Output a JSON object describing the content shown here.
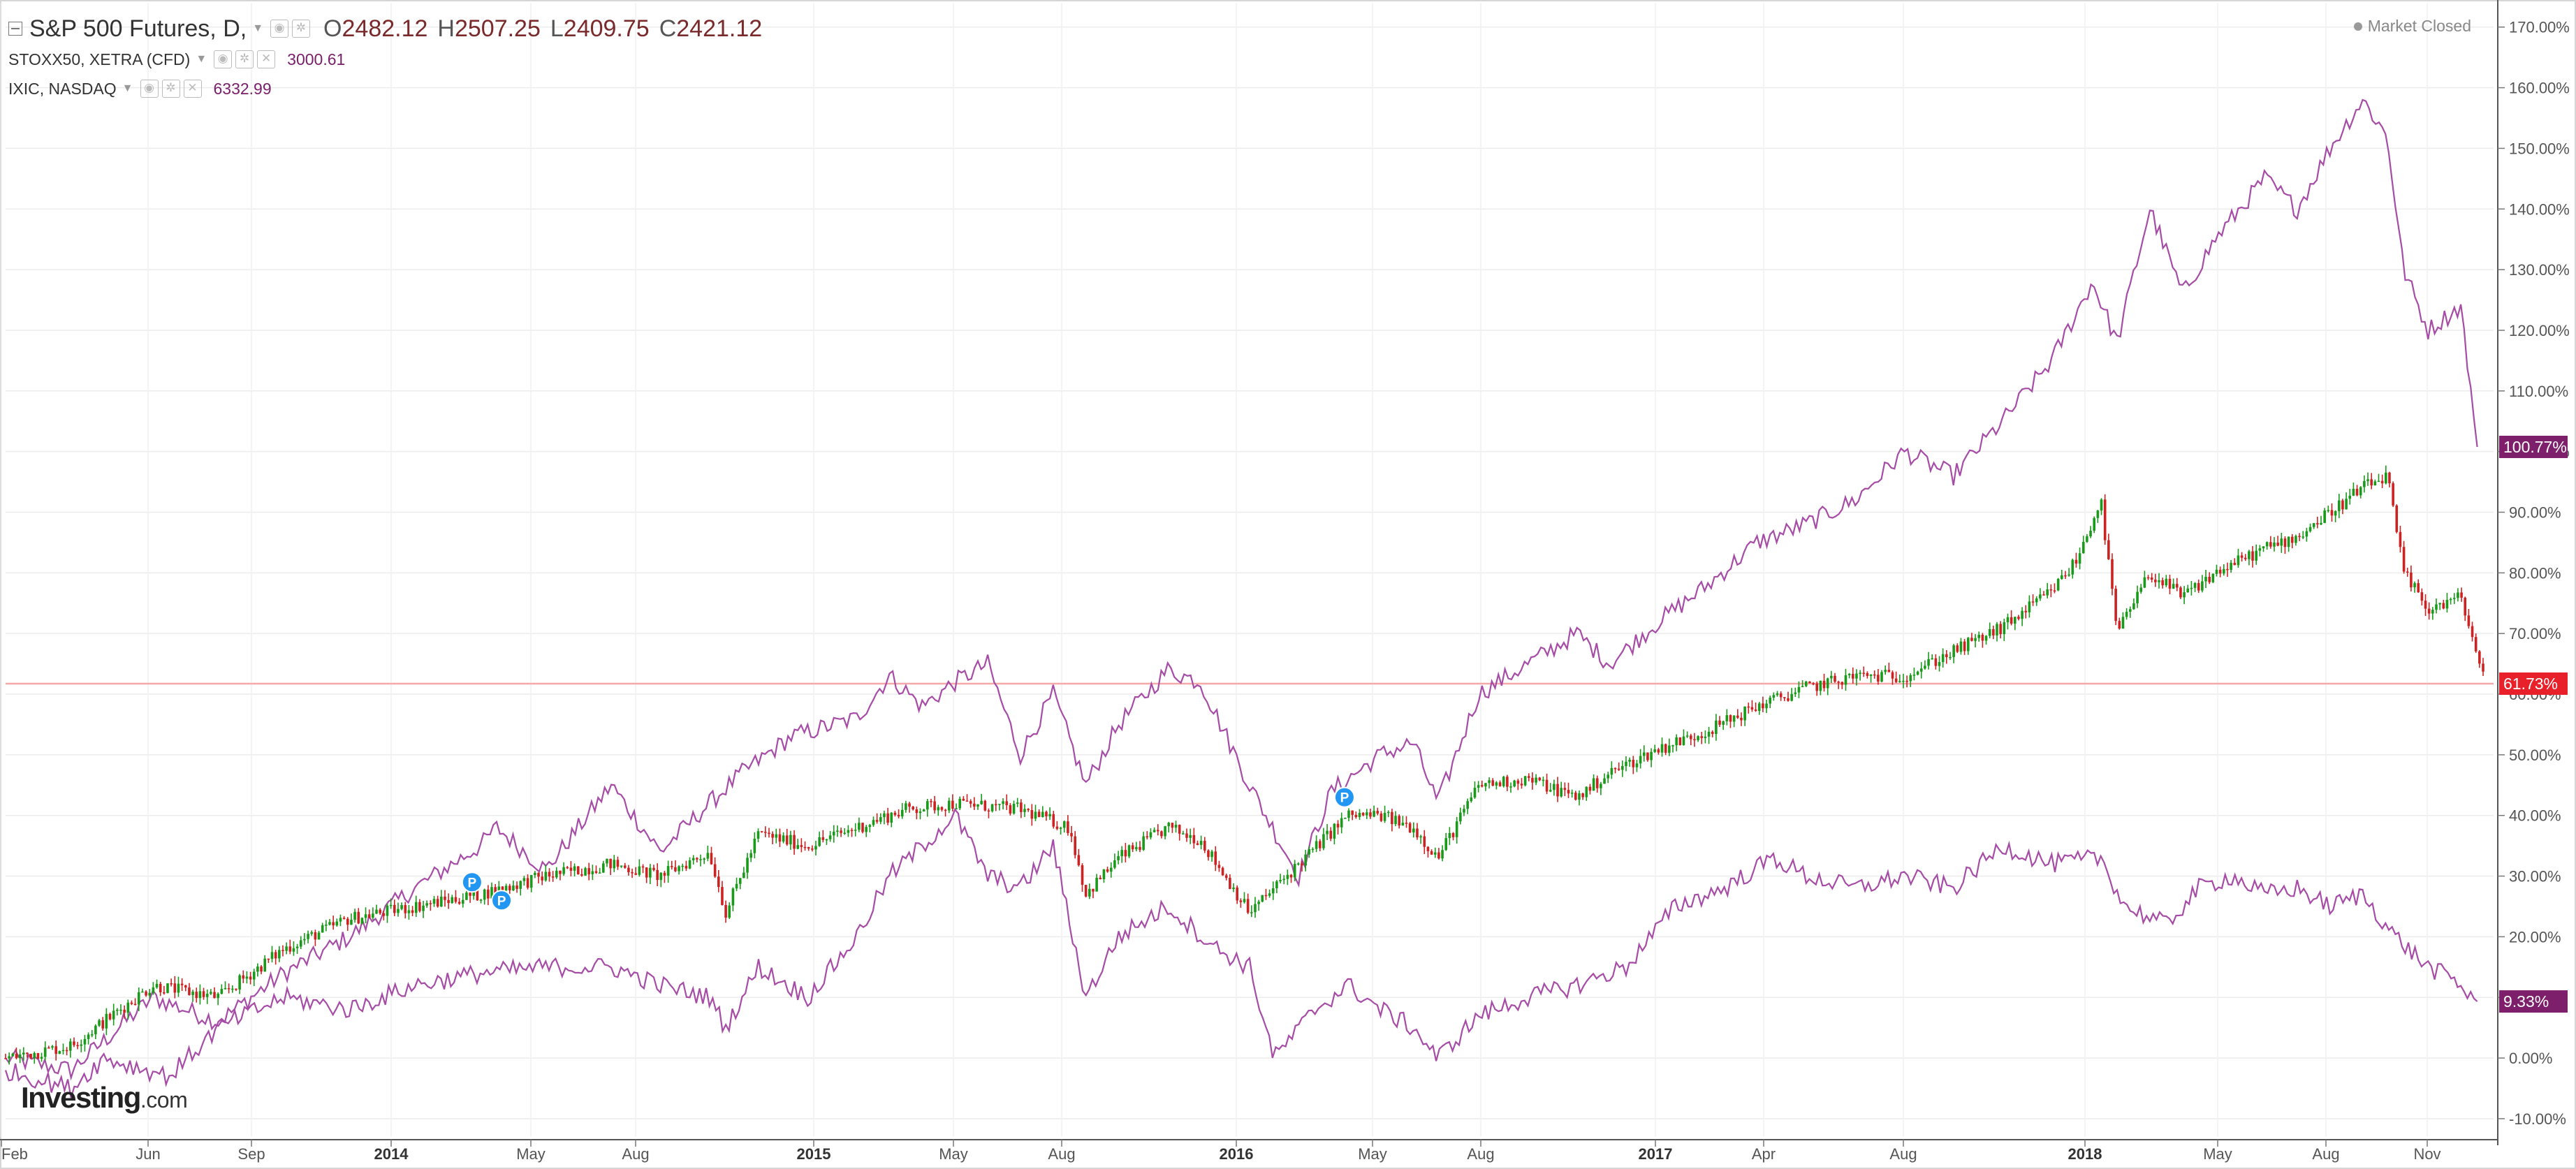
{
  "header": {
    "main_symbol": "S&P 500 Futures, D,",
    "ohlc": [
      {
        "label": "O",
        "value": "2482.12"
      },
      {
        "label": "H",
        "value": "2507.25"
      },
      {
        "label": "L",
        "value": "2409.75"
      },
      {
        "label": "C",
        "value": "2421.12"
      }
    ],
    "compare_symbols": [
      {
        "name": "STOXX50, XETRA (CFD)",
        "value": "3000.61"
      },
      {
        "name": "IXIC, NASDAQ",
        "value": "6332.99"
      }
    ],
    "market_status": "Market Closed"
  },
  "logo": {
    "brand": "Investing",
    "suffix": ".com"
  },
  "colors": {
    "up_candle": "#1a9a1a",
    "down_candle": "#cc2222",
    "compare_line": "#a64ca6",
    "nasdaq_label_bg": "#7d1f6a",
    "sp_label_bg": "#e8202a",
    "current_price_line": "#f4a8a8",
    "marker": "#2196f3"
  },
  "chart_data": {
    "type": "line",
    "y_axis": {
      "unit": "%",
      "ticks": [
        "170.00%",
        "160.00%",
        "150.00%",
        "140.00%",
        "130.00%",
        "120.00%",
        "110.00%",
        "100.00%",
        "90.00%",
        "80.00%",
        "70.00%",
        "60.00%",
        "50.00%",
        "40.00%",
        "30.00%",
        "20.00%",
        "10.00%",
        "0.00%",
        "-10.00%"
      ],
      "range": [
        -13,
        174
      ]
    },
    "x_axis": {
      "ticks": [
        {
          "label": "Feb",
          "bold": false
        },
        {
          "label": "Jun",
          "bold": false
        },
        {
          "label": "Sep",
          "bold": false
        },
        {
          "label": "2014",
          "bold": true
        },
        {
          "label": "May",
          "bold": false
        },
        {
          "label": "Aug",
          "bold": false
        },
        {
          "label": "2015",
          "bold": true
        },
        {
          "label": "May",
          "bold": false
        },
        {
          "label": "Aug",
          "bold": false
        },
        {
          "label": "2016",
          "bold": true
        },
        {
          "label": "May",
          "bold": false
        },
        {
          "label": "Aug",
          "bold": false
        },
        {
          "label": "2017",
          "bold": true
        },
        {
          "label": "Apr",
          "bold": false
        },
        {
          "label": "Aug",
          "bold": false
        },
        {
          "label": "2018",
          "bold": true
        },
        {
          "label": "May",
          "bold": false
        },
        {
          "label": "Aug",
          "bold": false
        },
        {
          "label": "Nov",
          "bold": false
        }
      ]
    },
    "series": [
      {
        "name": "IXIC, NASDAQ",
        "style": "line",
        "last_value_label": "100.77%",
        "points": [
          [
            0,
            0
          ],
          [
            40,
            -2
          ],
          [
            90,
            10
          ],
          [
            130,
            6
          ],
          [
            170,
            14
          ],
          [
            210,
            20
          ],
          [
            250,
            28
          ],
          [
            290,
            35
          ],
          [
            300,
            38
          ],
          [
            330,
            31
          ],
          [
            370,
            45
          ],
          [
            400,
            34
          ],
          [
            430,
            42
          ],
          [
            450,
            47
          ],
          [
            480,
            53
          ],
          [
            520,
            56
          ],
          [
            540,
            63
          ],
          [
            560,
            58
          ],
          [
            580,
            62
          ],
          [
            600,
            65
          ],
          [
            620,
            50
          ],
          [
            640,
            60
          ],
          [
            660,
            45
          ],
          [
            680,
            55
          ],
          [
            710,
            64
          ],
          [
            730,
            62
          ],
          [
            760,
            45
          ],
          [
            790,
            30
          ],
          [
            810,
            44
          ],
          [
            840,
            50
          ],
          [
            860,
            52
          ],
          [
            875,
            42
          ],
          [
            900,
            60
          ],
          [
            930,
            65
          ],
          [
            960,
            70
          ],
          [
            980,
            65
          ],
          [
            1010,
            72
          ],
          [
            1040,
            78
          ],
          [
            1070,
            85
          ],
          [
            1100,
            88
          ],
          [
            1130,
            92
          ],
          [
            1160,
            100
          ],
          [
            1190,
            96
          ],
          [
            1220,
            105
          ],
          [
            1250,
            115
          ],
          [
            1275,
            128
          ],
          [
            1290,
            118
          ],
          [
            1310,
            140
          ],
          [
            1330,
            126
          ],
          [
            1350,
            135
          ],
          [
            1380,
            145
          ],
          [
            1400,
            140
          ],
          [
            1420,
            150
          ],
          [
            1440,
            158
          ],
          [
            1455,
            152
          ],
          [
            1465,
            130
          ],
          [
            1480,
            120
          ],
          [
            1500,
            124
          ],
          [
            1510,
            100.77
          ]
        ]
      },
      {
        "name": "S&P 500 Futures",
        "style": "candlestick",
        "last_value_label": "61.73%",
        "points": [
          [
            0,
            0
          ],
          [
            40,
            2
          ],
          [
            90,
            12
          ],
          [
            130,
            10
          ],
          [
            170,
            18
          ],
          [
            210,
            23
          ],
          [
            250,
            25
          ],
          [
            290,
            27
          ],
          [
            330,
            30
          ],
          [
            370,
            32
          ],
          [
            400,
            30
          ],
          [
            430,
            34
          ],
          [
            440,
            24
          ],
          [
            460,
            37
          ],
          [
            490,
            35
          ],
          [
            520,
            38
          ],
          [
            550,
            41
          ],
          [
            580,
            42
          ],
          [
            620,
            41
          ],
          [
            650,
            38
          ],
          [
            660,
            27
          ],
          [
            680,
            33
          ],
          [
            710,
            38
          ],
          [
            730,
            36
          ],
          [
            760,
            24
          ],
          [
            790,
            32
          ],
          [
            820,
            40
          ],
          [
            840,
            40
          ],
          [
            860,
            38
          ],
          [
            875,
            33
          ],
          [
            900,
            45
          ],
          [
            930,
            46
          ],
          [
            960,
            43
          ],
          [
            980,
            47
          ],
          [
            1010,
            51
          ],
          [
            1040,
            54
          ],
          [
            1070,
            58
          ],
          [
            1100,
            61
          ],
          [
            1130,
            63
          ],
          [
            1160,
            63
          ],
          [
            1190,
            67
          ],
          [
            1220,
            71
          ],
          [
            1250,
            77
          ],
          [
            1265,
            82
          ],
          [
            1280,
            92
          ],
          [
            1290,
            70
          ],
          [
            1310,
            80
          ],
          [
            1330,
            76
          ],
          [
            1350,
            80
          ],
          [
            1380,
            84
          ],
          [
            1400,
            86
          ],
          [
            1420,
            90
          ],
          [
            1440,
            94
          ],
          [
            1455,
            96
          ],
          [
            1465,
            80
          ],
          [
            1480,
            74
          ],
          [
            1500,
            76
          ],
          [
            1515,
            61.73
          ]
        ]
      },
      {
        "name": "STOXX50, XETRA (CFD)",
        "style": "line",
        "last_value_label": "9.33%",
        "points": [
          [
            0,
            -2
          ],
          [
            40,
            -5
          ],
          [
            60,
            0
          ],
          [
            100,
            -3
          ],
          [
            130,
            5
          ],
          [
            170,
            10
          ],
          [
            210,
            8
          ],
          [
            250,
            12
          ],
          [
            290,
            14
          ],
          [
            330,
            15
          ],
          [
            370,
            15
          ],
          [
            400,
            12
          ],
          [
            430,
            10
          ],
          [
            440,
            5
          ],
          [
            460,
            15
          ],
          [
            490,
            10
          ],
          [
            520,
            20
          ],
          [
            540,
            30
          ],
          [
            560,
            35
          ],
          [
            580,
            40
          ],
          [
            600,
            30
          ],
          [
            620,
            28
          ],
          [
            640,
            35
          ],
          [
            660,
            10
          ],
          [
            680,
            20
          ],
          [
            710,
            25
          ],
          [
            740,
            18
          ],
          [
            760,
            15
          ],
          [
            775,
            0
          ],
          [
            800,
            8
          ],
          [
            820,
            12
          ],
          [
            840,
            8
          ],
          [
            860,
            5
          ],
          [
            875,
            0
          ],
          [
            900,
            7
          ],
          [
            930,
            10
          ],
          [
            960,
            12
          ],
          [
            990,
            15
          ],
          [
            1020,
            25
          ],
          [
            1050,
            28
          ],
          [
            1080,
            33
          ],
          [
            1100,
            30
          ],
          [
            1130,
            28
          ],
          [
            1160,
            30
          ],
          [
            1190,
            28
          ],
          [
            1220,
            35
          ],
          [
            1250,
            32
          ],
          [
            1280,
            33
          ],
          [
            1295,
            25
          ],
          [
            1320,
            22
          ],
          [
            1340,
            28
          ],
          [
            1360,
            30
          ],
          [
            1380,
            27
          ],
          [
            1400,
            28
          ],
          [
            1420,
            25
          ],
          [
            1440,
            27
          ],
          [
            1460,
            20
          ],
          [
            1480,
            15
          ],
          [
            1495,
            13
          ],
          [
            1510,
            9.33
          ]
        ]
      }
    ],
    "events": [
      {
        "label": "P",
        "x": 285,
        "y": 29
      },
      {
        "label": "P",
        "x": 303,
        "y": 26
      },
      {
        "label": "P",
        "x": 818,
        "y": 43
      }
    ],
    "current_price_level": 61.73
  }
}
